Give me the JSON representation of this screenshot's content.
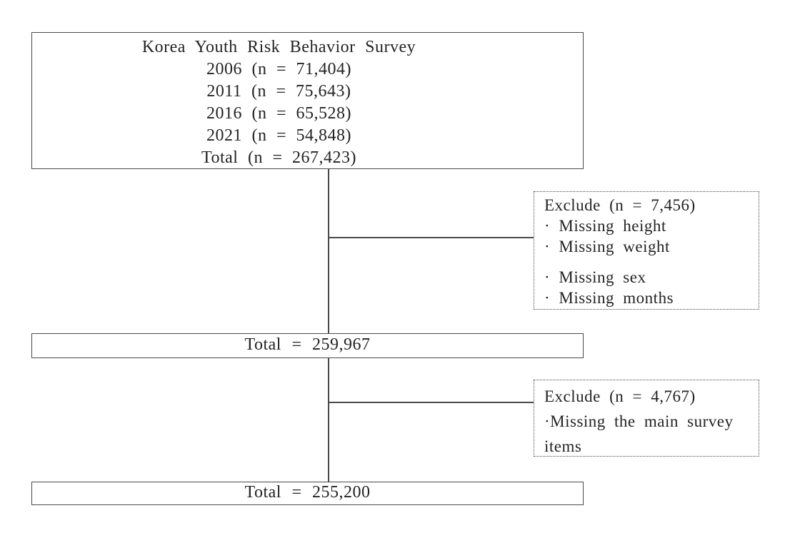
{
  "colors": {
    "line": "#4a4a4a",
    "text": "#242424",
    "background": "#ffffff"
  },
  "flowchart": {
    "source_box": {
      "title": "Korea Youth Risk Behavior Survey",
      "rows": [
        "2006 (n = 71,404)",
        "2011 (n = 75,643)",
        "2016 (n = 65,528)",
        "2021 (n = 54,848)",
        "Total (n = 267,423)"
      ]
    },
    "exclude_box_1": {
      "title": "Exclude (n = 7,456)",
      "items": [
        "· Missing height",
        "· Missing weight",
        "· Missing sex",
        "· Missing months"
      ]
    },
    "total_box_1": {
      "label": "Total = 259,967"
    },
    "exclude_box_2": {
      "title": "Exclude (n = 4,767)",
      "items": [
        "·Missing the main survey items"
      ]
    },
    "total_box_2": {
      "label": "Total = 255,200"
    }
  }
}
